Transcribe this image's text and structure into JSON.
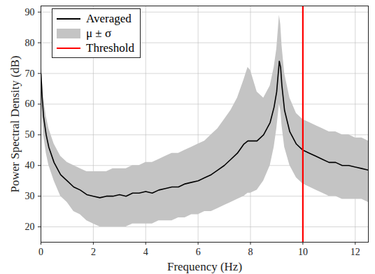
{
  "chart_data": {
    "type": "line",
    "x_label": "Frequency (Hz)",
    "y_label": "Power Spectral Density (dB)",
    "x": [
      0,
      0.05,
      0.1,
      0.2,
      0.3,
      0.5,
      0.75,
      1.0,
      1.25,
      1.5,
      1.75,
      2.0,
      2.25,
      2.5,
      2.75,
      3.0,
      3.25,
      3.5,
      3.75,
      4.0,
      4.25,
      4.5,
      4.75,
      5.0,
      5.25,
      5.5,
      5.75,
      6.0,
      6.25,
      6.5,
      6.75,
      7.0,
      7.25,
      7.5,
      7.75,
      7.9,
      8.0,
      8.25,
      8.5,
      8.75,
      8.9,
      9.0,
      9.1,
      9.15,
      9.2,
      9.3,
      9.5,
      9.75,
      10.0,
      10.25,
      10.5,
      10.75,
      11.0,
      11.25,
      11.5,
      11.75,
      12.0,
      12.25,
      12.5
    ],
    "series": [
      {
        "name": "μ ± σ",
        "type": "area",
        "color": "#c4c4c4",
        "lower": [
          64,
          56,
          50,
          44,
          40,
          35,
          30,
          28,
          25,
          24,
          22,
          21,
          20,
          20,
          20,
          20,
          20,
          21,
          21,
          21,
          21,
          22,
          22,
          22,
          23,
          23,
          24,
          24,
          25,
          25,
          26,
          27,
          28,
          29,
          30,
          31,
          31,
          32,
          35,
          40,
          46,
          52,
          60,
          58,
          53,
          46,
          40,
          36,
          34,
          33,
          32,
          31,
          30,
          30,
          29,
          29,
          29,
          29,
          28
        ],
        "upper": [
          76,
          68,
          62,
          56,
          52,
          47,
          43,
          41,
          40,
          39,
          38,
          38,
          38,
          38,
          39,
          39,
          39,
          40,
          40,
          41,
          41,
          42,
          43,
          44,
          44,
          45,
          46,
          47,
          48,
          50,
          52,
          55,
          58,
          62,
          68,
          72,
          71,
          64,
          62,
          66,
          72,
          78,
          89,
          86,
          79,
          70,
          62,
          57,
          55,
          54,
          53,
          52,
          51,
          51,
          50,
          50,
          49,
          49,
          48
        ]
      },
      {
        "name": "Averaged",
        "type": "line",
        "color": "#000000",
        "values": [
          70,
          62,
          56,
          50,
          46,
          41,
          37,
          35,
          33,
          32,
          30.5,
          30,
          29.5,
          30,
          30,
          30.5,
          30,
          31,
          31,
          31.5,
          31,
          32,
          32.5,
          33,
          33,
          34,
          34.5,
          35,
          36,
          37,
          38.5,
          40,
          42,
          44,
          47,
          48,
          48,
          48,
          50,
          54,
          59,
          64,
          74,
          72,
          66,
          58,
          51,
          47,
          45,
          44,
          43,
          42,
          41,
          41,
          40,
          40,
          39.5,
          39,
          38.5
        ]
      },
      {
        "name": "Threshold",
        "type": "vline",
        "color": "#ff0000",
        "x": 10
      }
    ],
    "legend_order": [
      "Averaged",
      "μ ± σ",
      "Threshold"
    ],
    "xlim": [
      0,
      12.5
    ],
    "xticks": [
      0,
      2,
      4,
      6,
      8,
      10,
      12
    ],
    "ylim": [
      15,
      92
    ],
    "yticks": [
      20,
      30,
      40,
      50,
      60,
      70,
      80,
      90
    ],
    "grid": true,
    "legend": "upper left"
  }
}
